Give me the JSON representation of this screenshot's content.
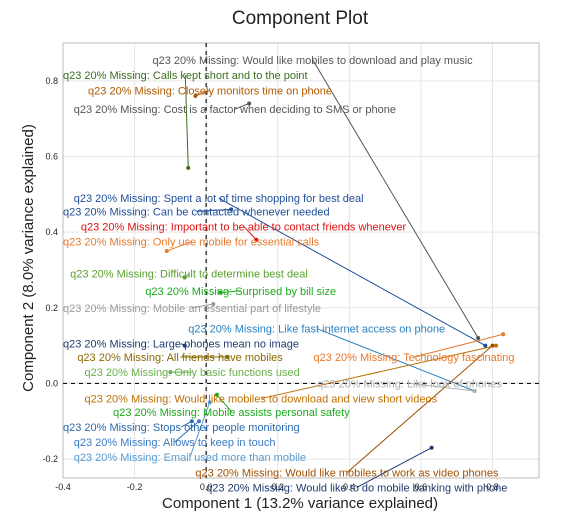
{
  "chart_data": {
    "type": "scatter",
    "title": "Component Plot",
    "xlabel": "Component 1 (13.2% variance explained)",
    "ylabel": "Component 2 (8.0% variance explained)",
    "xlim": [
      -0.4,
      0.93
    ],
    "ylim": [
      -0.25,
      0.9
    ],
    "xticks": [
      "-0.4",
      "-0.2",
      "0.0",
      "0.2",
      "0.4",
      "0.6",
      "0.8"
    ],
    "xtick_values": [
      -0.4,
      -0.2,
      0.0,
      0.2,
      0.4,
      0.6,
      0.8
    ],
    "yticks": [
      "-0.2",
      "0.0",
      "0.2",
      "0.4",
      "0.6",
      "0.8"
    ],
    "ytick_values": [
      -0.2,
      0.0,
      0.2,
      0.4,
      0.6,
      0.8
    ],
    "grid": true,
    "zero_lines": true,
    "points": [
      {
        "label": "q23 20% Missing: Would like mobiles to download and play music",
        "x": 0.76,
        "y": 0.12,
        "label_x": -0.15,
        "label_y": 0.855,
        "color": "#555555"
      },
      {
        "label": "q23 20% Missing: Calls kept short and to the point",
        "x": -0.05,
        "y": 0.57,
        "label_x": -0.4,
        "label_y": 0.815,
        "color": "#3a6e1f"
      },
      {
        "label": "q23 20% Missing: Closely monitors time on phone",
        "x": -0.03,
        "y": 0.76,
        "label_x": -0.33,
        "label_y": 0.775,
        "color": "#b05a00"
      },
      {
        "label": "q23 20% Missing: Cost is a factor when deciding to SMS or phone",
        "x": 0.12,
        "y": 0.74,
        "label_x": -0.37,
        "label_y": 0.725,
        "color": "#555555"
      },
      {
        "label": "q23 20% Missing: Spent a lot of time shopping for best deal",
        "x": 0.78,
        "y": 0.1,
        "label_x": -0.37,
        "label_y": 0.49,
        "color": "#1f4e99"
      },
      {
        "label": "q23 20% Missing: Can be contacted whenever needed",
        "x": 0.07,
        "y": 0.46,
        "label_x": -0.4,
        "label_y": 0.455,
        "color": "#1f4e99"
      },
      {
        "label": "q23 20% Missing: Important to be able to contact friends whenever",
        "x": 0.14,
        "y": 0.38,
        "label_x": -0.35,
        "label_y": 0.415,
        "color": "#e01010"
      },
      {
        "label": "q23 20% Missing: Only use mobile for essential calls",
        "x": -0.11,
        "y": 0.35,
        "label_x": -0.4,
        "label_y": 0.375,
        "color": "#e8782a"
      },
      {
        "label": "q23 20% Missing: Difficult to determine best deal",
        "x": -0.06,
        "y": 0.28,
        "label_x": -0.38,
        "label_y": 0.29,
        "color": "#5aa02c"
      },
      {
        "label": "q23 20% Missing: Surprised by bill size",
        "x": 0.04,
        "y": 0.24,
        "label_x": -0.17,
        "label_y": 0.245,
        "color": "#1eaa1e"
      },
      {
        "label": "q23 20% Missing: Mobile an essential part of lifestyle",
        "x": 0.02,
        "y": 0.21,
        "label_x": -0.4,
        "label_y": 0.2,
        "color": "#9a9a9a"
      },
      {
        "label": "q23 20% Missing: Like fast internet access on phone",
        "x": 0.75,
        "y": -0.02,
        "label_x": -0.05,
        "label_y": 0.145,
        "color": "#2a80c0"
      },
      {
        "label": "q23 20% Missing: Large phones mean no image",
        "x": -0.06,
        "y": 0.1,
        "label_x": -0.4,
        "label_y": 0.105,
        "color": "#1e3a6e"
      },
      {
        "label": "q23 20% Missing: Technology fascinating",
        "x": 0.83,
        "y": 0.13,
        "label_x": 0.3,
        "label_y": 0.07,
        "color": "#e8782a"
      },
      {
        "label": "q23 20% Missing: All friends have mobiles",
        "x": 0.06,
        "y": 0.07,
        "label_x": -0.36,
        "label_y": 0.07,
        "color": "#8a6a00"
      },
      {
        "label": "q23 20% Missing: Only basic functions used",
        "x": -0.1,
        "y": 0.03,
        "label_x": -0.34,
        "label_y": 0.03,
        "color": "#6ab04c"
      },
      {
        "label": "q23 20% Missing: Like look of phones",
        "x": 0.75,
        "y": -0.02,
        "label_x": 0.31,
        "label_y": 0.0,
        "color": "#b0b0b0"
      },
      {
        "label": "q23 20% Missing: Would like mobiles to download and view short videos",
        "x": 0.81,
        "y": 0.1,
        "label_x": -0.34,
        "label_y": -0.04,
        "color": "#c07000"
      },
      {
        "label": "q23 20% Missing: Mobile assists personal safety",
        "x": 0.03,
        "y": -0.03,
        "label_x": -0.26,
        "label_y": -0.075,
        "color": "#1eaa1e"
      },
      {
        "label": "q23 20% Missing: Stops other people monitoring",
        "x": -0.04,
        "y": -0.1,
        "label_x": -0.4,
        "label_y": -0.115,
        "color": "#2a6ab0"
      },
      {
        "label": "q23 20% Missing: Allows to keep in touch",
        "x": -0.02,
        "y": -0.1,
        "label_x": -0.37,
        "label_y": -0.155,
        "color": "#3a7ac0"
      },
      {
        "label": "q23 20% Missing: Email used more than mobile",
        "x": 0.01,
        "y": -0.05,
        "label_x": -0.37,
        "label_y": -0.195,
        "color": "#5a9ad0"
      },
      {
        "label": "q23 20% Missing: Would like mobiles to work as video phones",
        "x": 0.8,
        "y": 0.1,
        "label_x": -0.03,
        "label_y": -0.235,
        "color": "#a05000"
      },
      {
        "label": "q23 20% Missing: Would like to do mobile banking with phone",
        "x": 0.63,
        "y": -0.17,
        "label_x": 0.0,
        "label_y": -0.275,
        "color": "#1e3a6e"
      }
    ]
  }
}
